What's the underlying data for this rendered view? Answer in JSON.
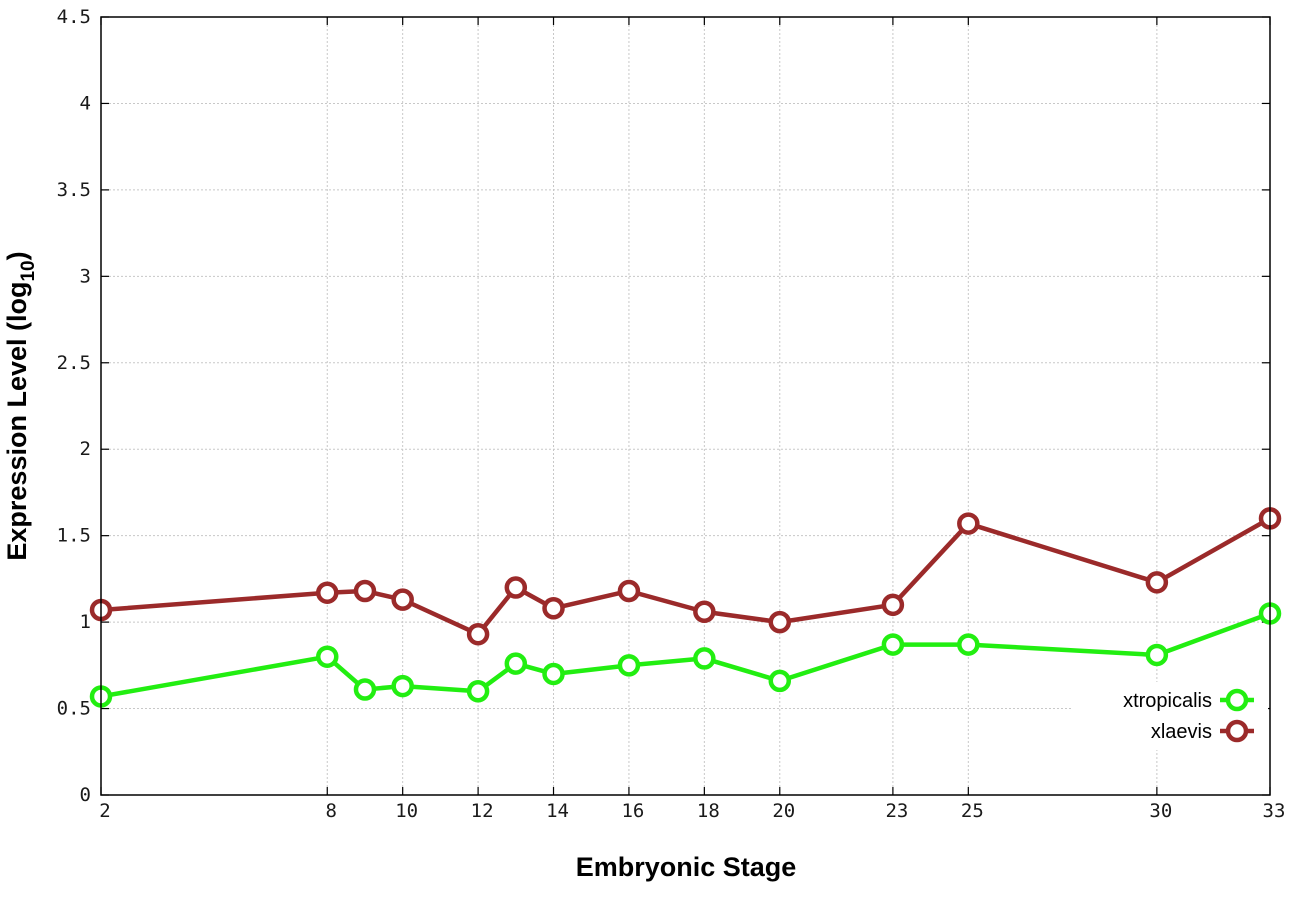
{
  "chart_data": {
    "type": "line",
    "xlabel": "Embryonic Stage",
    "ylabel": "Expression Level (log",
    "ylabel_subscript": "10",
    "ylabel_close": ")",
    "ylim": [
      0,
      4.5
    ],
    "xlim": [
      2,
      33
    ],
    "grid": true,
    "legend_position": "bottom-right",
    "x_ticks": [
      "2",
      "8",
      "10",
      "12",
      "14",
      "16",
      "18",
      "20",
      "23",
      "25",
      "30",
      "33"
    ],
    "y_ticks": [
      "0",
      "0.5",
      "1",
      "1.5",
      "2",
      "2.5",
      "3",
      "3.5",
      "4",
      "4.5"
    ],
    "x": [
      2,
      8,
      9,
      10,
      12,
      13,
      14,
      16,
      18,
      20,
      23,
      25,
      30,
      33
    ],
    "series": [
      {
        "name": "xtropicalis",
        "color": "#22ee11",
        "values": [
          0.57,
          0.8,
          0.61,
          0.63,
          0.6,
          0.76,
          0.7,
          0.75,
          0.79,
          0.66,
          0.87,
          0.87,
          0.81,
          1.05
        ]
      },
      {
        "name": "xlaevis",
        "color": "#9b2a2a",
        "values": [
          1.07,
          1.17,
          1.18,
          1.13,
          0.93,
          1.2,
          1.08,
          1.18,
          1.06,
          1.0,
          1.1,
          1.57,
          1.23,
          1.6
        ]
      }
    ]
  }
}
